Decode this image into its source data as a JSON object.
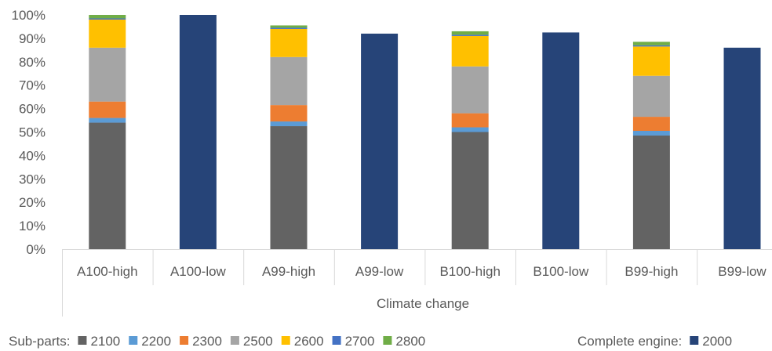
{
  "chart_data": {
    "type": "bar",
    "stacked": true,
    "categories": [
      "A100-high",
      "A100-low",
      "A99-high",
      "A99-low",
      "B100-high",
      "B100-low",
      "B99-high",
      "B99-low"
    ],
    "xlabel": "Climate change",
    "ylabel": "",
    "ylim": [
      0,
      100
    ],
    "yticks": [
      "0%",
      "10%",
      "20%",
      "30%",
      "40%",
      "50%",
      "60%",
      "70%",
      "80%",
      "90%",
      "100%"
    ],
    "grid": false,
    "legend_position": "bottom",
    "legend_groups": [
      {
        "label": "Sub-parts:",
        "series": [
          "2100",
          "2200",
          "2300",
          "2500",
          "2600",
          "2700",
          "2800"
        ]
      },
      {
        "label": "Complete engine:",
        "series": [
          "2000"
        ]
      }
    ],
    "series": [
      {
        "name": "2100",
        "color": "#636363",
        "values": [
          54,
          0,
          52.5,
          0,
          50,
          0,
          48.5,
          0
        ]
      },
      {
        "name": "2200",
        "color": "#5b9bd5",
        "values": [
          2,
          0,
          2,
          0,
          2,
          0,
          2,
          0
        ]
      },
      {
        "name": "2300",
        "color": "#ed7d31",
        "values": [
          7,
          0,
          7,
          0,
          6,
          0,
          6,
          0
        ]
      },
      {
        "name": "2500",
        "color": "#a5a5a5",
        "values": [
          23,
          0,
          20.5,
          0,
          20,
          0,
          17.5,
          0
        ]
      },
      {
        "name": "2600",
        "color": "#ffc000",
        "values": [
          12,
          0,
          12,
          0,
          13,
          0,
          12.5,
          0
        ]
      },
      {
        "name": "2700",
        "color": "#4472c4",
        "values": [
          0.5,
          0,
          0.5,
          0,
          0.5,
          0,
          0.5,
          0
        ]
      },
      {
        "name": "2800",
        "color": "#70ad47",
        "values": [
          1.5,
          0,
          1,
          0,
          1.5,
          0,
          1.5,
          0
        ]
      },
      {
        "name": "2000",
        "color": "#264478",
        "values": [
          0,
          100,
          0,
          92,
          0,
          92.5,
          0,
          86
        ]
      }
    ]
  }
}
